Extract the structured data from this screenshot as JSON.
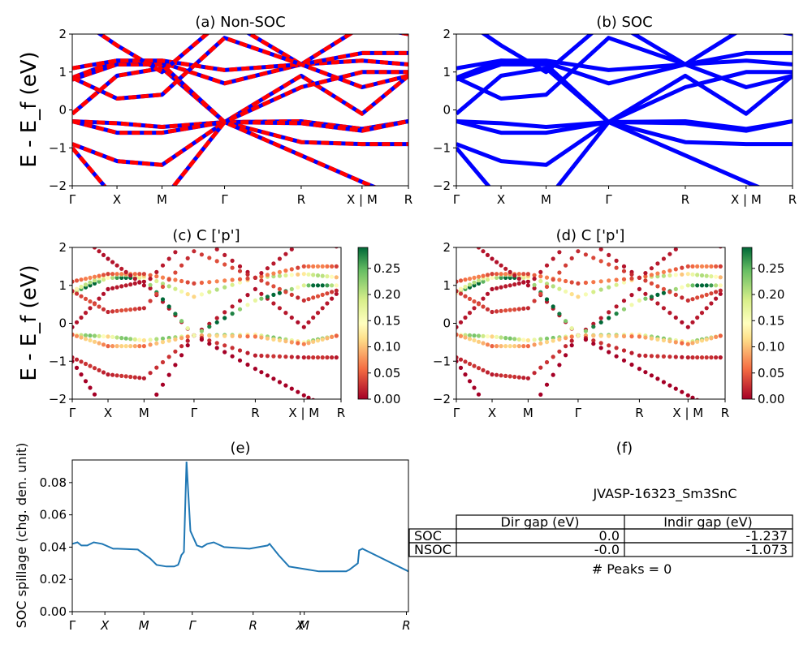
{
  "chart_data": [
    {
      "type": "line",
      "panel": "a",
      "title": "(a) Non-SOC",
      "ylabel": "E - E_f (eV)",
      "ylim": [
        -2,
        2
      ],
      "yticks": [
        "−2",
        "−1",
        "0",
        "1",
        "2"
      ],
      "kpath": [
        "Γ",
        "X",
        "M",
        "Γ",
        "R",
        "X | M",
        "R"
      ],
      "series": [
        {
          "color": "#0000ff",
          "values": [
            -0.3,
            -0.3,
            -0.3,
            -0.35,
            -0.35,
            -0.35,
            -0.3
          ]
        },
        {
          "color": "#ff0000",
          "values": [
            -0.3,
            -0.3,
            -0.3,
            -0.35,
            -0.35,
            -0.35,
            -0.3
          ]
        }
      ],
      "bands": [
        [
          -0.3,
          -0.35,
          -0.45,
          -0.32,
          -0.3,
          -0.5,
          -0.3
        ],
        [
          -0.3,
          -0.6,
          -0.6,
          -0.32,
          -0.35,
          -0.55,
          -0.3
        ],
        [
          -0.9,
          -1.35,
          -1.45,
          -0.32,
          -0.85,
          -0.9,
          -0.9
        ],
        [
          -1.0,
          -2.4,
          -2.4,
          -0.32,
          -1.2,
          -1.9,
          -2.4
        ],
        [
          -0.1,
          0.9,
          1.1,
          -0.32,
          0.9,
          -0.1,
          0.9
        ],
        [
          0.8,
          1.2,
          1.2,
          -0.32,
          0.6,
          1.0,
          1.0
        ],
        [
          0.85,
          1.3,
          1.25,
          0.7,
          1.2,
          1.3,
          1.2
        ],
        [
          1.1,
          1.3,
          1.3,
          1.05,
          1.2,
          1.5,
          1.5
        ],
        [
          2.5,
          1.7,
          1.0,
          2.4,
          1.2,
          2.2,
          2.0
        ],
        [
          0.85,
          0.3,
          0.4,
          1.9,
          1.2,
          0.6,
          0.9
        ]
      ]
    },
    {
      "type": "line",
      "panel": "b",
      "title": "(b) SOC",
      "ylim": [
        -2,
        2
      ],
      "yticks": [
        "−2",
        "−1",
        "0",
        "1",
        "2"
      ],
      "kpath": [
        "Γ",
        "X",
        "M",
        "Γ",
        "R",
        "X | M",
        "R"
      ],
      "series": [
        {
          "color": "#0000ff",
          "values": [
            -0.3,
            -0.3,
            -0.3,
            -0.35,
            -0.35,
            -0.35,
            -0.3
          ]
        }
      ]
    },
    {
      "type": "scatter",
      "panel": "c",
      "title": "(c)  C ['p']",
      "ylabel": "E - E_f (eV)",
      "ylim": [
        -2,
        2
      ],
      "yticks": [
        "−2",
        "−1",
        "0",
        "1",
        "2"
      ],
      "kpath": [
        "Γ",
        "X",
        "M",
        "Γ",
        "R",
        "X | M",
        "R"
      ],
      "colorbar": {
        "min": 0.0,
        "max": 0.29,
        "ticks": [
          "0.00",
          "0.05",
          "0.10",
          "0.15",
          "0.20",
          "0.25"
        ]
      }
    },
    {
      "type": "scatter",
      "panel": "d",
      "title": "(d) C ['p']",
      "ylim": [
        -2,
        2
      ],
      "yticks": [
        "−2",
        "−1",
        "0",
        "1",
        "2"
      ],
      "kpath": [
        "Γ",
        "X",
        "M",
        "Γ",
        "R",
        "X | M",
        "R"
      ],
      "colorbar": {
        "min": 0.0,
        "max": 0.29,
        "ticks": [
          "0.00",
          "0.05",
          "0.10",
          "0.15",
          "0.20",
          "0.25"
        ]
      }
    },
    {
      "type": "line",
      "panel": "e",
      "title": "(e)",
      "ylabel": "SOC spillage (chg. den. unit)",
      "ylim": [
        0,
        0.094
      ],
      "yticks": [
        "0.00",
        "0.02",
        "0.04",
        "0.06",
        "0.08"
      ],
      "kpath": [
        "Γ",
        "X",
        "M",
        "Γ",
        "R",
        "X",
        "M",
        "R"
      ],
      "series": [
        {
          "color": "#1f77b4",
          "x": [
            0,
            0.8,
            1.4,
            2.3,
            3.3,
            4.6,
            6.3,
            6.8,
            7.0,
            10.1,
            12.0,
            13.0,
            14.5,
            15.7,
            16.3,
            16.5,
            16.8,
            17.2,
            17.6,
            18.2,
            19.2,
            20.0,
            20.8,
            21.8,
            23.4,
            27.3,
            30.1,
            30.4,
            31.8,
            33.4,
            38.0,
            42.2,
            42.7,
            44.0,
            44.2,
            44.7,
            51.8
          ],
          "y": [
            0.042,
            0.043,
            0.041,
            0.041,
            0.043,
            0.042,
            0.039,
            0.039,
            0.039,
            0.0385,
            0.033,
            0.029,
            0.028,
            0.028,
            0.029,
            0.031,
            0.035,
            0.037,
            0.093,
            0.05,
            0.041,
            0.04,
            0.042,
            0.043,
            0.04,
            0.039,
            0.041,
            0.042,
            0.035,
            0.028,
            0.025,
            0.025,
            0.026,
            0.03,
            0.038,
            0.039,
            0.025
          ]
        }
      ]
    }
  ],
  "table": {
    "title": "(f)",
    "material": "JVASP-16323_Sm3SnC",
    "columns": [
      "Dir gap (eV)",
      "Indir gap (eV)"
    ],
    "rows": [
      {
        "label": "SOC",
        "dir": "0.0",
        "indir": "-1.237"
      },
      {
        "label": "NSOC",
        "dir": "-0.0",
        "indir": "-1.073"
      }
    ],
    "peaks": "# Peaks = 0"
  }
}
